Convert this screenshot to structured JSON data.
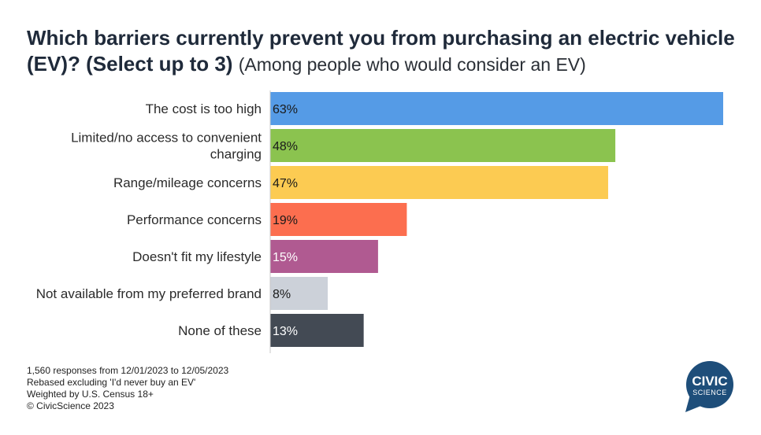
{
  "title": {
    "bold": "Which barriers currently prevent you from purchasing an electric vehicle (EV)? (Select up to 3)",
    "subtitle": "(Among people who would consider an EV)"
  },
  "chart_data": {
    "type": "bar",
    "orientation": "horizontal",
    "categories": [
      [
        "The cost is too high"
      ],
      [
        "Limited/no access to convenient",
        "charging"
      ],
      [
        "Range/mileage concerns"
      ],
      [
        "Performance concerns"
      ],
      [
        "Doesn't fit my lifestyle"
      ],
      [
        "Not available from my preferred brand"
      ],
      [
        "None of these"
      ]
    ],
    "values": [
      63,
      48,
      47,
      19,
      15,
      8,
      13
    ],
    "value_labels": [
      "63%",
      "48%",
      "47%",
      "19%",
      "15%",
      "8%",
      "13%"
    ],
    "colors": [
      "#559be6",
      "#8bc34f",
      "#fccb52",
      "#fc6e4f",
      "#b05a91",
      "#ccd1d9",
      "#434a54"
    ],
    "label_colors": [
      "#1a1a1a",
      "#1a1a1a",
      "#1a1a1a",
      "#1a1a1a",
      "#ffffff",
      "#1a1a1a",
      "#ffffff"
    ],
    "xlim": [
      0,
      63
    ]
  },
  "notes": [
    "1,560 responses from 12/01/2023 to 12/05/2023",
    "Rebased excluding 'I'd never buy an EV'",
    "Weighted by U.S. Census 18+",
    "© CivicScience 2023"
  ],
  "logo": {
    "line1": "CIVIC",
    "line2": "SCIENCE",
    "color": "#1e4e7a"
  }
}
